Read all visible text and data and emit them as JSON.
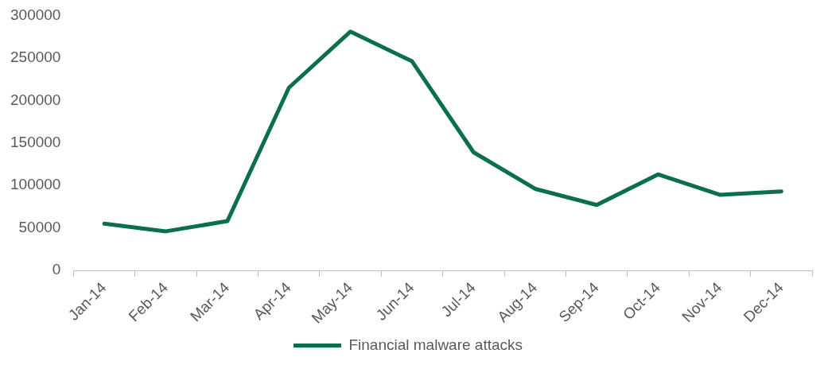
{
  "chart_data": {
    "type": "line",
    "categories": [
      "Jan-14",
      "Feb-14",
      "Mar-14",
      "Apr-14",
      "May-14",
      "Jun-14",
      "Jul-14",
      "Aug-14",
      "Sep-14",
      "Oct-14",
      "Nov-14",
      "Dec-14"
    ],
    "series": [
      {
        "name": "Financial malware attacks",
        "color": "#0b6e4f",
        "values": [
          55000,
          46000,
          58000,
          215000,
          281000,
          246000,
          139000,
          96000,
          77000,
          113000,
          89000,
          93000
        ]
      }
    ],
    "ylim": [
      0,
      300000
    ],
    "yticks": [
      0,
      50000,
      100000,
      150000,
      200000,
      250000,
      300000
    ],
    "legend": "bottom",
    "marker": "none"
  }
}
